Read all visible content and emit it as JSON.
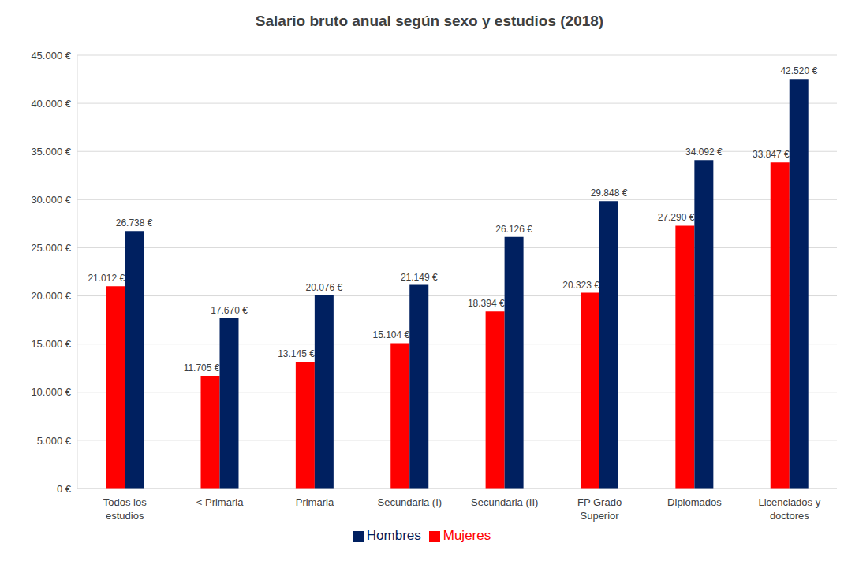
{
  "chart_data": {
    "type": "bar",
    "title": "Salario bruto anual según sexo y estudios (2018)",
    "categories": [
      "Todos los estudios",
      "< Primaria",
      "Primaria",
      "Secundaria (I)",
      "Secundaria (II)",
      "FP Grado Superior",
      "Diplomados",
      "Licenciados y doctores"
    ],
    "series": [
      {
        "name": "Mujeres",
        "color": "#ff0000",
        "values": [
          21012,
          11705,
          13145,
          15104,
          18394,
          20323,
          27290,
          33847
        ],
        "value_labels": [
          "21.012 €",
          "11.705 €",
          "13.145 €",
          "15.104 €",
          "18.394 €",
          "20.323 €",
          "27.290 €",
          "33.847 €"
        ]
      },
      {
        "name": "Hombres",
        "color": "#002060",
        "values": [
          26738,
          17670,
          20076,
          21149,
          26126,
          29848,
          34092,
          42520
        ],
        "value_labels": [
          "26.738 €",
          "17.670 €",
          "20.076 €",
          "21.149 €",
          "26.126 €",
          "29.848 €",
          "34.092 €",
          "42.520 €"
        ]
      }
    ],
    "ylim": [
      0,
      45000
    ],
    "yticks": [
      {
        "value": 0,
        "label": "0 €"
      },
      {
        "value": 5000,
        "label": "5.000 €"
      },
      {
        "value": 10000,
        "label": "10.000 €"
      },
      {
        "value": 15000,
        "label": "15.000 €"
      },
      {
        "value": 20000,
        "label": "20.000 €"
      },
      {
        "value": 25000,
        "label": "25.000 €"
      },
      {
        "value": 30000,
        "label": "30.000 €"
      },
      {
        "value": 35000,
        "label": "35.000 €"
      },
      {
        "value": 40000,
        "label": "40.000 €"
      },
      {
        "value": 45000,
        "label": "45.000 €"
      }
    ],
    "grid": true,
    "legend": "bottom",
    "data_labels": true
  }
}
